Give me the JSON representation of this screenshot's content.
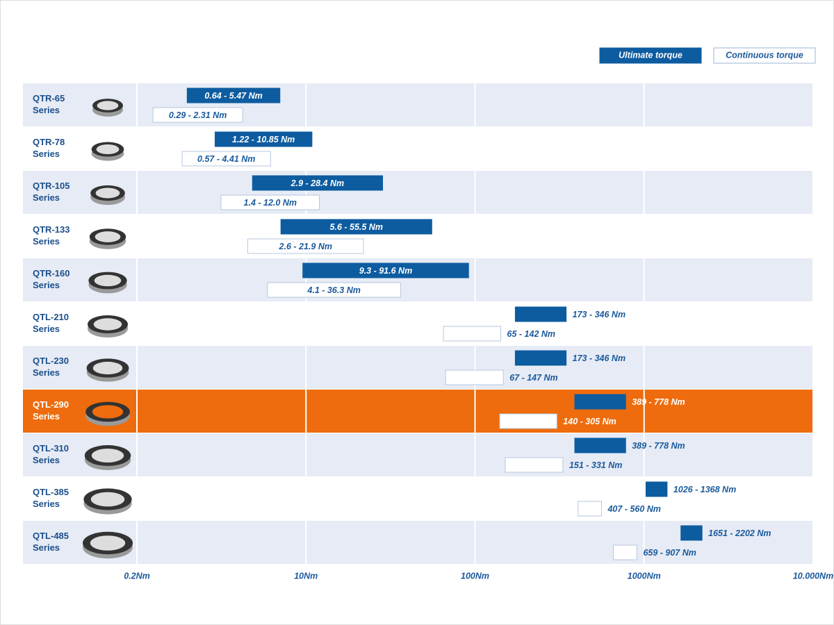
{
  "chart_data": {
    "type": "range-bar",
    "categories": [
      "QTR-65\nSeries",
      "QTR-78\nSeries",
      "QTR-105\nSeries",
      "QTR-133\nSeries",
      "QTR-160\nSeries",
      "QTL-210\nSeries",
      "QTL-230\nSeries",
      "QTL-290\nSeries",
      "QTL-310\nSeries",
      "QTL-385\nSeries",
      "QTL-485\nSeries"
    ],
    "series": [
      {
        "name": "Ultimate torque",
        "color": "#0d5ca0",
        "low": [
          0.64,
          1.22,
          2.9,
          5.6,
          9.3,
          173,
          173,
          389,
          389,
          1026,
          1651
        ],
        "high": [
          5.47,
          10.85,
          28.4,
          55.5,
          91.6,
          346,
          346,
          778,
          778,
          1368,
          2202
        ],
        "value_labels": [
          "0.64 - 5.47 Nm",
          "1.22 - 10.85 Nm",
          "2.9 - 28.4 Nm",
          "5.6 - 55.5 Nm",
          "9.3 - 91.6 Nm",
          "173 - 346 Nm",
          "173 - 346 Nm",
          "389 - 778 Nm",
          "389 - 778 Nm",
          "1026 - 1368 Nm",
          "1651 - 2202 Nm"
        ]
      },
      {
        "name": "Continuous torque",
        "color": "#ffffff",
        "low": [
          0.29,
          0.57,
          1.4,
          2.6,
          4.1,
          65,
          67,
          140,
          151,
          407,
          659
        ],
        "high": [
          2.31,
          4.41,
          12.0,
          21.9,
          36.3,
          142,
          147,
          305,
          331,
          560,
          907
        ],
        "value_labels": [
          "0.29 - 2.31 Nm",
          "0.57 - 4.41 Nm",
          "1.4 - 12.0 Nm",
          "2.6 - 21.9 Nm",
          "4.1 - 36.3 Nm",
          "65 - 142 Nm",
          "67 - 147 Nm",
          "140 - 305 Nm",
          "151 - 331 Nm",
          "407 - 560 Nm",
          "659 - 907 Nm"
        ]
      }
    ],
    "xlim": [
      0.2,
      10000
    ],
    "xticks": [
      {
        "value": 0.2,
        "label": "0.2Nm"
      },
      {
        "value": 10,
        "label": "10Nm"
      },
      {
        "value": 100,
        "label": "100Nm"
      },
      {
        "value": 1000,
        "label": "1000Nm"
      },
      {
        "value": 10000,
        "label": "10.000Nm"
      }
    ],
    "highlight_index": 7,
    "grid": true
  }
}
